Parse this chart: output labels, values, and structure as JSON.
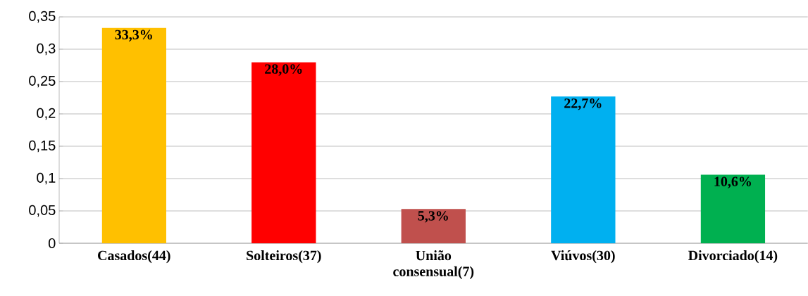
{
  "chart_data": {
    "type": "bar",
    "categories": [
      "Casados(44)",
      "Solteiros(37)",
      "União consensual(7)",
      "Viúvos(30)",
      "Divorciado(14)"
    ],
    "values": [
      0.333,
      0.28,
      0.053,
      0.227,
      0.106
    ],
    "colors": [
      "#ffc000",
      "#ff0000",
      "#c0504d",
      "#00b0f0",
      "#00b050"
    ],
    "value_labels": [
      "33,3%",
      "28,0%",
      "5,3%",
      "22,7%",
      "10,6%"
    ],
    "ylim": [
      0,
      0.35
    ],
    "yticks": [
      {
        "value": 0,
        "label": "0"
      },
      {
        "value": 0.05,
        "label": "0,05"
      },
      {
        "value": 0.1,
        "label": "0,1"
      },
      {
        "value": 0.15,
        "label": "0,15"
      },
      {
        "value": 0.2,
        "label": "0,2"
      },
      {
        "value": 0.25,
        "label": "0,25"
      },
      {
        "value": 0.3,
        "label": "0,3"
      },
      {
        "value": 0.35,
        "label": "0,35"
      }
    ],
    "grid": "y"
  }
}
